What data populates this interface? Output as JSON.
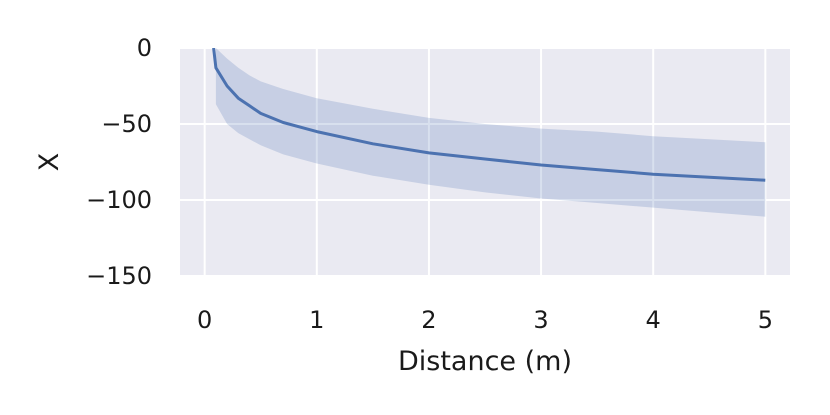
{
  "chart_data": {
    "type": "line",
    "title": "",
    "xlabel": "Distance (m)",
    "ylabel": "X",
    "xlim": [
      -0.22,
      5.22
    ],
    "ylim": [
      -150,
      0
    ],
    "xticks": [
      0,
      1,
      2,
      3,
      4,
      5
    ],
    "yticks": [
      0,
      -50,
      -100,
      -150
    ],
    "xtick_labels": [
      "0",
      "1",
      "2",
      "3",
      "4",
      "5"
    ],
    "ytick_labels": [
      "0",
      "−50",
      "−100",
      "−150"
    ],
    "grid": true,
    "series": [
      {
        "color": "#4c72b0",
        "band_color": "#4c72b0",
        "x": [
          0.1,
          0.2,
          0.3,
          0.4,
          0.5,
          0.7,
          1.0,
          1.5,
          2.0,
          2.5,
          3.0,
          3.5,
          4.0,
          4.5,
          5.0
        ],
        "y": [
          -13,
          -25,
          -33,
          -38,
          -43,
          -49,
          -55,
          -63,
          -69,
          -73,
          -77,
          -80,
          -83,
          -85,
          -87
        ],
        "y_lower": [
          -37,
          -50,
          -56,
          -60,
          -64,
          -70,
          -76,
          -84,
          -90,
          -95,
          -99,
          -102,
          -105,
          -108,
          -111
        ],
        "y_upper": [
          0,
          -7,
          -13,
          -18,
          -22,
          -27,
          -33,
          -40,
          -46,
          -50,
          -53,
          -55,
          -58,
          -60,
          -62
        ]
      }
    ]
  }
}
